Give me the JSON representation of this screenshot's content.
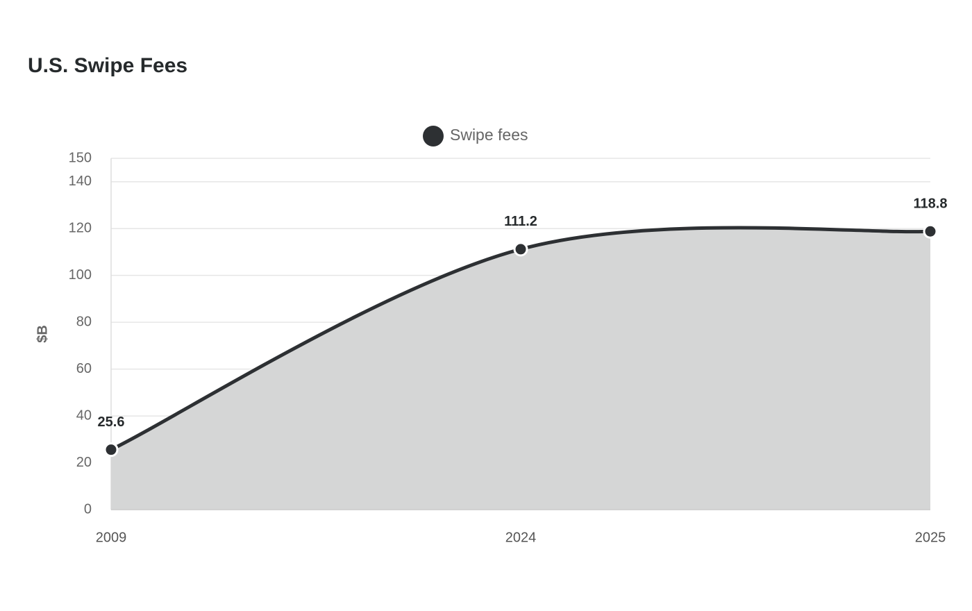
{
  "chart_data": {
    "type": "area",
    "title": "U.S. Swipe Fees",
    "categories": [
      "2009",
      "2024",
      "2025"
    ],
    "series": [
      {
        "name": "Swipe fees",
        "color": "#2d3033",
        "fill_color": "#d5d6d6",
        "values": [
          25.6,
          111.2,
          118.8
        ]
      }
    ],
    "ylabel": "$B",
    "ylim": [
      0,
      150
    ],
    "yticks": [
      0,
      20,
      40,
      60,
      80,
      100,
      120,
      140,
      150
    ],
    "grid": true
  }
}
